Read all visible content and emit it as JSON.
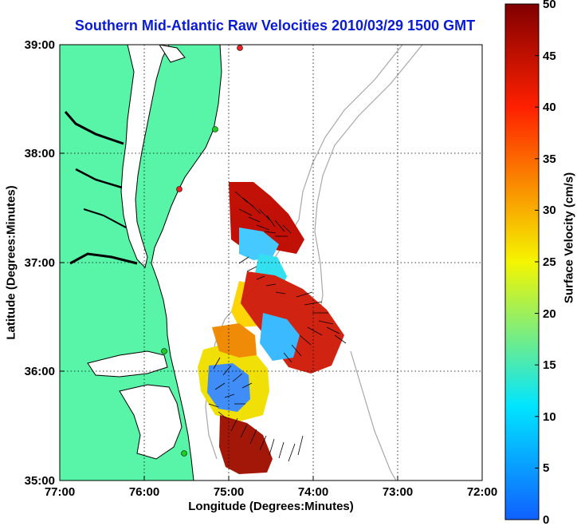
{
  "map": {
    "title": "Southern Mid-Atlantic Raw Velocities 2010/03/29 1500 GMT",
    "xlabel": "Longitude (Degrees:Minutes)",
    "ylabel": "Latitude (Degrees:Minutes)",
    "lon_ticks": [
      "77:00",
      "76:00",
      "75:00",
      "74:00",
      "73:00",
      "72:00"
    ],
    "lat_ticks": [
      "35:00",
      "36:00",
      "37:00",
      "38:00",
      "39:00"
    ],
    "extent": {
      "lon": [
        -77,
        -72
      ],
      "lat": [
        35,
        39
      ]
    }
  },
  "colorbar": {
    "label": "Surface Velocity (cm/s)",
    "range": [
      0,
      50
    ],
    "ticks": [
      "0",
      "5",
      "10",
      "15",
      "20",
      "25",
      "30",
      "35",
      "40",
      "45",
      "50"
    ],
    "colors": {
      "low": "#1060ff",
      "mid_low": "#00e5ff",
      "mid": "#f5f500",
      "mid_high": "#ff2000",
      "high": "#800000"
    }
  },
  "colors": {
    "land": "#58f5a8",
    "coast_line": "#000000",
    "bathymetry": "#a8a8a8",
    "station_active": "#22cc22",
    "station_inactive": "#ee2222",
    "title": "#0a1bd6"
  }
}
